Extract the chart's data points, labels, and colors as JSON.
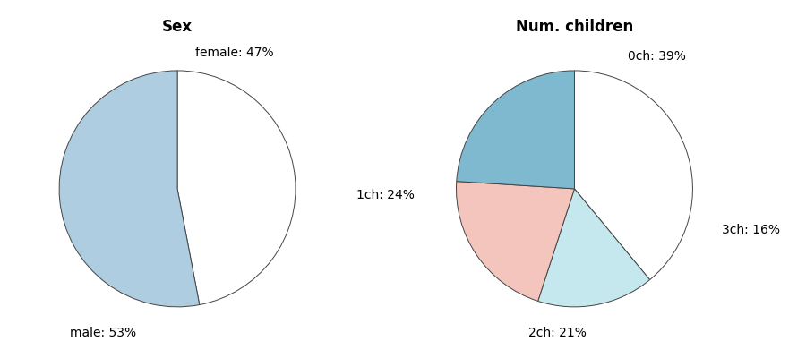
{
  "sex_labels": [
    "female: 47%",
    "male: 53%"
  ],
  "sex_values": [
    47,
    53
  ],
  "sex_colors": [
    "#ffffff",
    "#aecde1"
  ],
  "sex_title": "Sex",
  "ch_labels": [
    "0ch: 39%",
    "3ch: 16%",
    "2ch: 21%",
    "1ch: 24%"
  ],
  "ch_values": [
    39,
    16,
    21,
    24
  ],
  "ch_colors": [
    "#ffffff",
    "#c5e8ef",
    "#f4c5bc",
    "#7fb9cf"
  ],
  "ch_title": "Num. children",
  "label_fontsize": 10,
  "title_fontsize": 12,
  "edge_color": "#444444",
  "edge_width": 0.7,
  "background": "#ffffff"
}
